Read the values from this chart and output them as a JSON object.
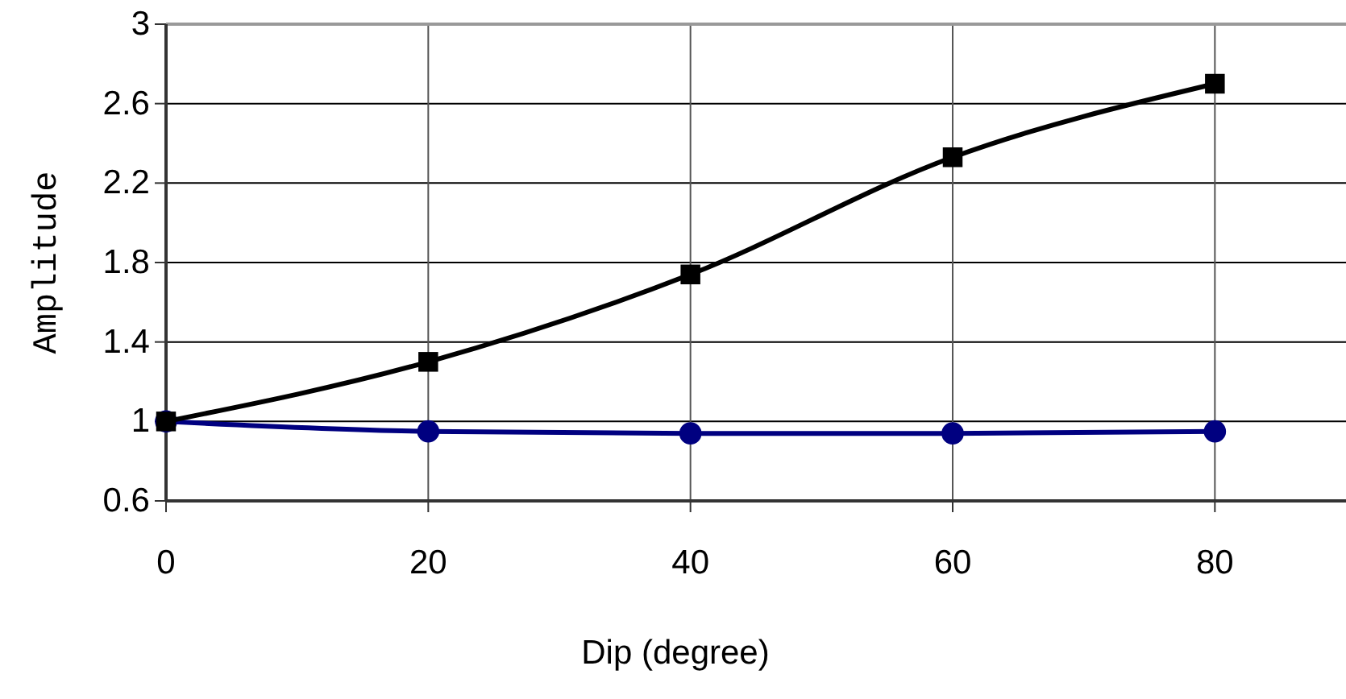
{
  "chart_data": {
    "type": "line",
    "xlabel": "Dip (degree)",
    "ylabel": "Amplitude",
    "x": [
      0,
      20,
      40,
      60,
      80
    ],
    "series": [
      {
        "color": "#000000",
        "marker": "square",
        "values": [
          1.0,
          1.3,
          1.74,
          2.33,
          2.7
        ]
      },
      {
        "color": "#000080",
        "marker": "circle",
        "values": [
          1.0,
          0.95,
          0.94,
          0.94,
          0.95
        ]
      }
    ],
    "xlim": [
      0,
      90
    ],
    "xticks": [
      0,
      20,
      40,
      60,
      80
    ],
    "ylim": [
      0.6,
      3
    ],
    "yticks": [
      0.6,
      1,
      1.4,
      1.8,
      2.2,
      2.6,
      3
    ],
    "grid": true
  }
}
